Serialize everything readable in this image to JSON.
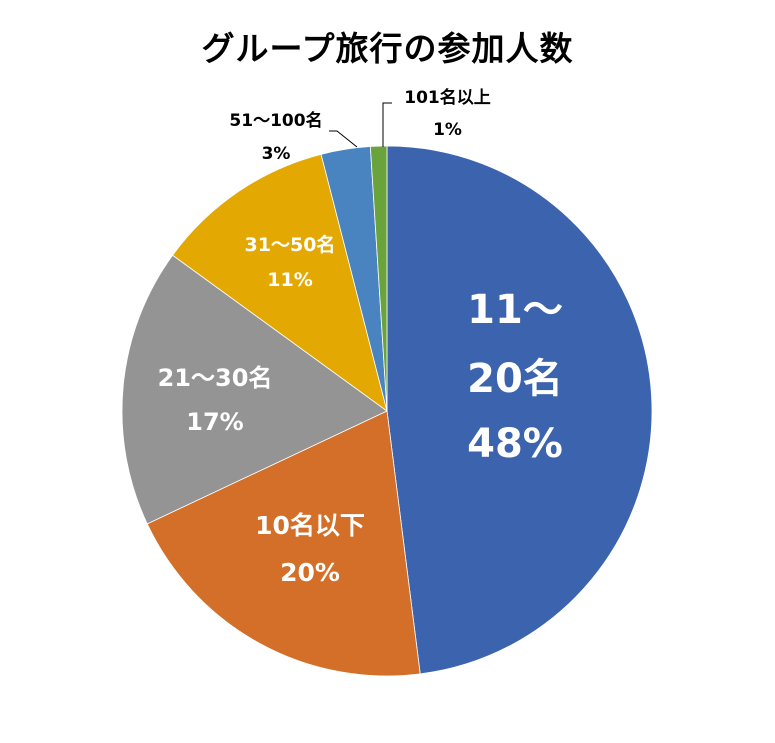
{
  "chart_data": {
    "type": "pie",
    "title": "グループ旅行の参加人数",
    "start_angle_deg": 0,
    "direction": "clockwise",
    "categories": [
      "11～20名",
      "10名以下",
      "21～30名",
      "31～50名",
      "51～100名",
      "101名以上"
    ],
    "values": [
      48,
      20,
      17,
      11,
      3,
      1
    ],
    "value_unit": "%",
    "data_labels": [
      {
        "category_lines": [
          "11～",
          "20名"
        ],
        "percent": "48%"
      },
      {
        "category_lines": [
          "10名以下"
        ],
        "percent": "20%"
      },
      {
        "category_lines": [
          "21～30名"
        ],
        "percent": "17%"
      },
      {
        "category_lines": [
          "31～50名"
        ],
        "percent": "11%"
      },
      {
        "category_lines": [
          "51～100名"
        ],
        "percent": "3%"
      },
      {
        "category_lines": [
          "101名以上"
        ],
        "percent": "1%"
      }
    ],
    "colors": [
      "#3c64ae",
      "#d46f29",
      "#949494",
      "#e3a802",
      "#4a84c0",
      "#6aa23c"
    ],
    "legend": "none",
    "leader_lines": [
      "51～100名",
      "101名以上"
    ]
  }
}
